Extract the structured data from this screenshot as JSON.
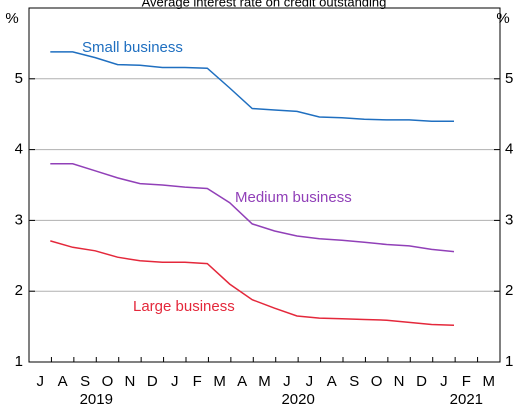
{
  "chart_data": {
    "type": "line",
    "title": "Average interest rate on credit outstanding",
    "y_unit": "%",
    "categories": [
      "J",
      "A",
      "S",
      "O",
      "N",
      "D",
      "J",
      "F",
      "M",
      "A",
      "M",
      "J",
      "J",
      "A",
      "S",
      "O",
      "N",
      "D",
      "J",
      "F",
      "M"
    ],
    "year_labels": [
      "2019",
      "2020",
      "2021"
    ],
    "ylim": [
      1,
      6
    ],
    "yticks": [
      1,
      2,
      3,
      4,
      5
    ],
    "grid": true,
    "series": [
      {
        "name": "Small business",
        "color": "#1f6fc0",
        "values": [
          5.38,
          5.38,
          5.3,
          5.2,
          5.19,
          5.16,
          5.16,
          5.15,
          4.87,
          4.58,
          4.56,
          4.54,
          4.46,
          4.45,
          4.43,
          4.42,
          4.42,
          4.4,
          4.4,
          null,
          null
        ]
      },
      {
        "name": "Medium business",
        "color": "#9140b8",
        "values": [
          3.8,
          3.8,
          3.7,
          3.6,
          3.52,
          3.5,
          3.47,
          3.45,
          3.25,
          2.95,
          2.85,
          2.78,
          2.74,
          2.72,
          2.69,
          2.66,
          2.64,
          2.59,
          2.56,
          null,
          null
        ]
      },
      {
        "name": "Large business",
        "color": "#e4283b",
        "values": [
          2.71,
          2.62,
          2.57,
          2.48,
          2.43,
          2.41,
          2.41,
          2.39,
          2.1,
          1.88,
          1.76,
          1.65,
          1.62,
          1.61,
          1.6,
          1.59,
          1.56,
          1.53,
          1.52,
          null,
          null
        ]
      }
    ]
  }
}
